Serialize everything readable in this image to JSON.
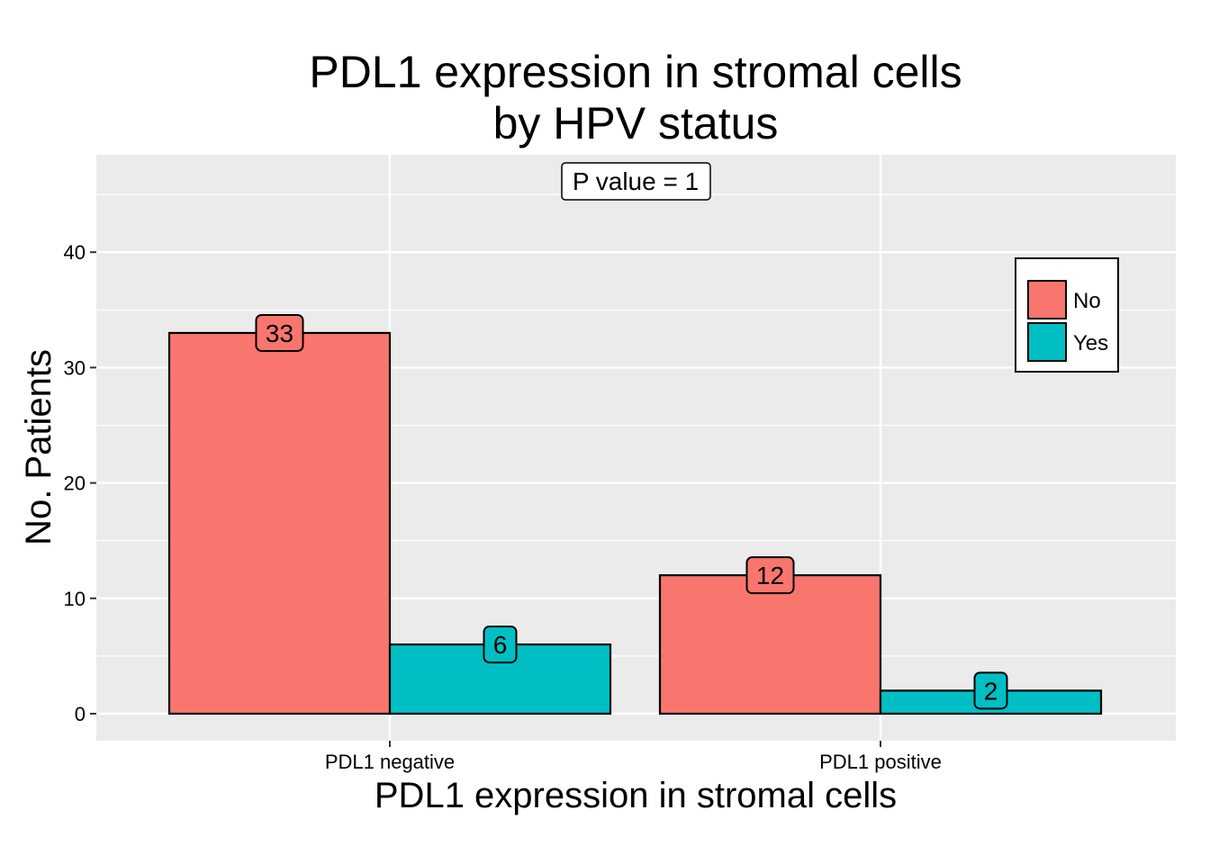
{
  "chart_data": {
    "type": "bar",
    "title_lines": [
      "PDL1 expression in stromal cells",
      "by HPV status"
    ],
    "xlabel": "PDL1 expression in stromal cells",
    "ylabel": "No. Patients",
    "categories": [
      "PDL1 negative",
      "PDL1 positive"
    ],
    "series": [
      {
        "name": "No",
        "color": "#F8766D",
        "values": [
          33,
          12
        ]
      },
      {
        "name": "Yes",
        "color": "#00BFC4",
        "values": [
          6,
          2
        ]
      }
    ],
    "ylim": [
      -2.2,
      48.5
    ],
    "yticks": [
      0,
      10,
      20,
      30,
      40
    ],
    "ytick_labels": [
      "0",
      "10",
      "20",
      "30",
      "40"
    ],
    "annotation": "P value = 1",
    "legend_position": "top-right",
    "panel_background": "#EBEBEB",
    "grid": true
  }
}
